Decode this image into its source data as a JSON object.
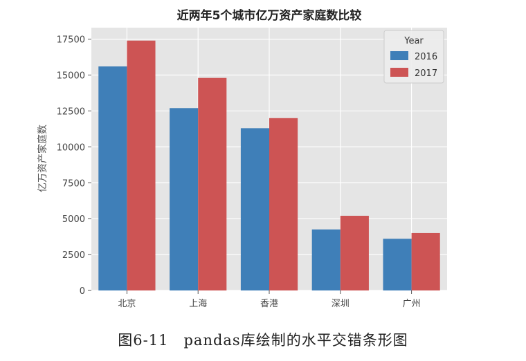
{
  "chart_data": {
    "type": "bar",
    "title": "近两年5个城市亿万资产家庭数比较",
    "xlabel": "",
    "ylabel": "亿万资产家庭数",
    "categories": [
      "北京",
      "上海",
      "香港",
      "深圳",
      "广州"
    ],
    "series": [
      {
        "name": "2016",
        "values": [
          15600,
          12700,
          11300,
          4250,
          3600
        ],
        "color": "#3f7fb8"
      },
      {
        "name": "2017",
        "values": [
          17400,
          14800,
          12000,
          5200,
          4000
        ],
        "color": "#cd5454"
      }
    ],
    "ylim": [
      0,
      18300
    ],
    "yticks": [
      0,
      2500,
      5000,
      7500,
      10000,
      12500,
      15000,
      17500
    ],
    "grid": true,
    "legend": {
      "title": "Year",
      "placement": "upper-right"
    },
    "background_color": "#e5e5e5",
    "grid_color": "#ffffff"
  },
  "caption": "图6-11　pandas库绘制的水平交错条形图"
}
